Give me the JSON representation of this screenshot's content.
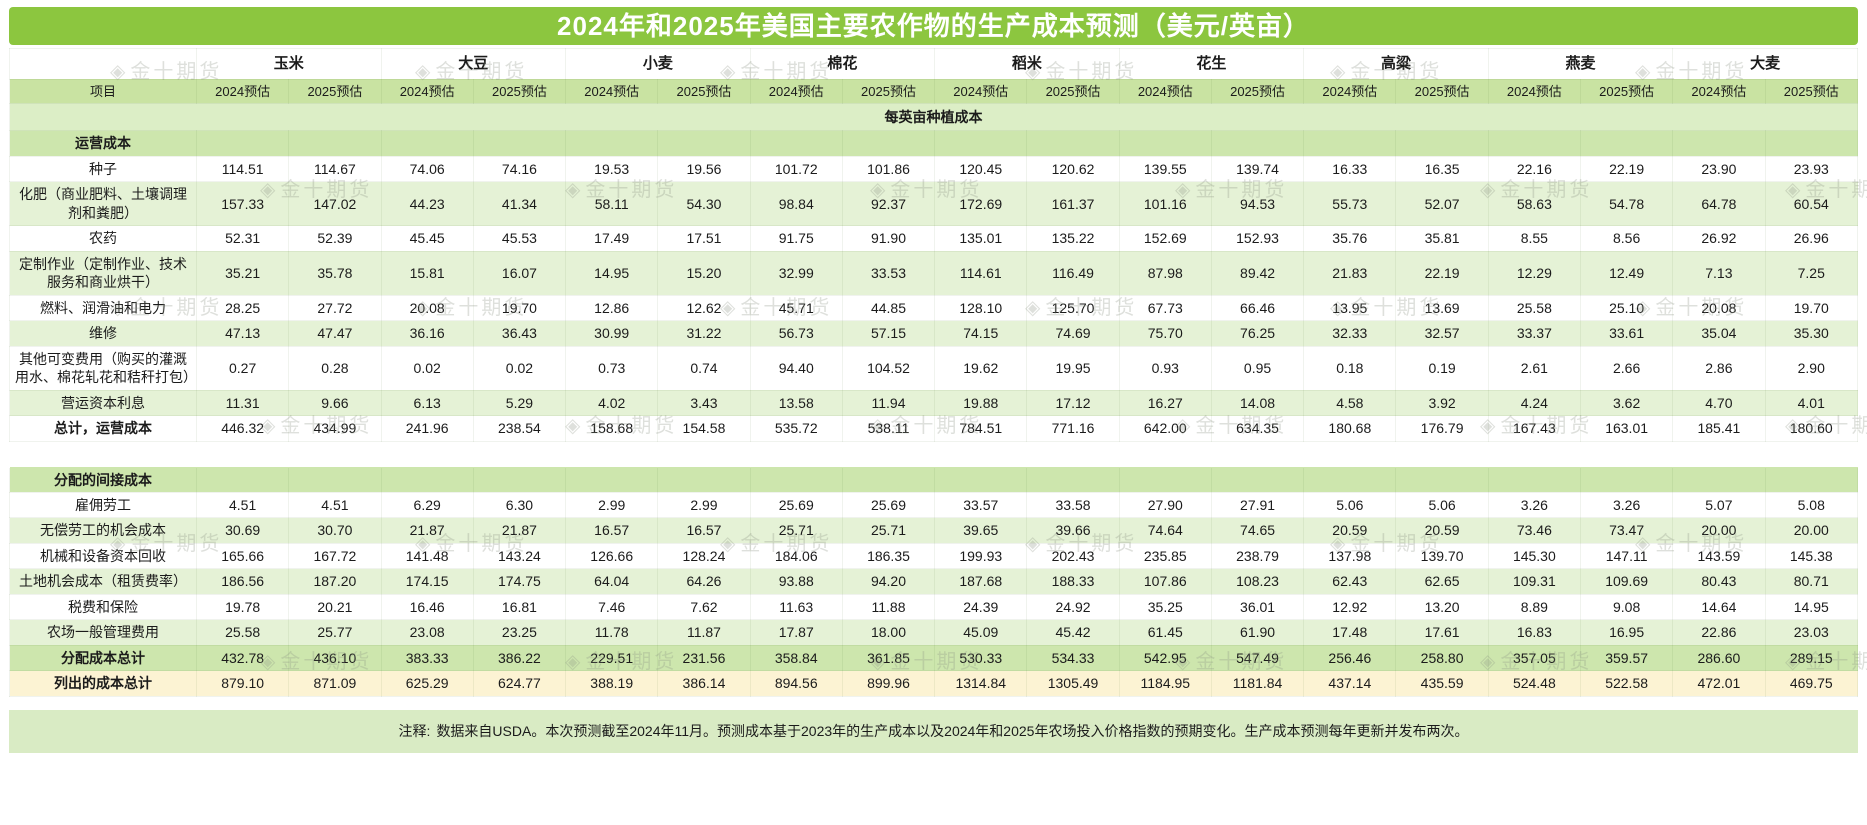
{
  "chart_data": {
    "type": "table",
    "title": "2024年和2025年美国主要农作物的生产成本预测（美元/英亩）",
    "item_column_header": "项目",
    "crop_groups": [
      "玉米",
      "大豆",
      "小麦",
      "棉花",
      "稻米",
      "花生",
      "高粱",
      "燕麦",
      "大麦"
    ],
    "year_subheaders": [
      "2024预估",
      "2025预估"
    ],
    "rows": [
      {
        "type": "banner",
        "label": "每英亩种植成本"
      },
      {
        "type": "section",
        "label": "运营成本"
      },
      {
        "type": "data",
        "shade": "white",
        "bold": false,
        "label": "种子",
        "values": [
          "114.51",
          "114.67",
          "74.06",
          "74.16",
          "19.53",
          "19.56",
          "101.72",
          "101.86",
          "120.45",
          "120.62",
          "139.55",
          "139.74",
          "16.33",
          "16.35",
          "22.16",
          "22.19",
          "23.90",
          "23.93"
        ]
      },
      {
        "type": "data",
        "shade": "green",
        "bold": false,
        "label": "化肥（商业肥料、土壤调理剂和粪肥）",
        "values": [
          "157.33",
          "147.02",
          "44.23",
          "41.34",
          "58.11",
          "54.30",
          "98.84",
          "92.37",
          "172.69",
          "161.37",
          "101.16",
          "94.53",
          "55.73",
          "52.07",
          "58.63",
          "54.78",
          "64.78",
          "60.54"
        ]
      },
      {
        "type": "data",
        "shade": "white",
        "bold": false,
        "label": "农药",
        "values": [
          "52.31",
          "52.39",
          "45.45",
          "45.53",
          "17.49",
          "17.51",
          "91.75",
          "91.90",
          "135.01",
          "135.22",
          "152.69",
          "152.93",
          "35.76",
          "35.81",
          "8.55",
          "8.56",
          "26.92",
          "26.96"
        ]
      },
      {
        "type": "data",
        "shade": "green",
        "bold": false,
        "label": "定制作业（定制作业、技术服务和商业烘干）",
        "values": [
          "35.21",
          "35.78",
          "15.81",
          "16.07",
          "14.95",
          "15.20",
          "32.99",
          "33.53",
          "114.61",
          "116.49",
          "87.98",
          "89.42",
          "21.83",
          "22.19",
          "12.29",
          "12.49",
          "7.13",
          "7.25"
        ]
      },
      {
        "type": "data",
        "shade": "white",
        "bold": false,
        "label": "燃料、润滑油和电力",
        "values": [
          "28.25",
          "27.72",
          "20.08",
          "19.70",
          "12.86",
          "12.62",
          "45.71",
          "44.85",
          "128.10",
          "125.70",
          "67.73",
          "66.46",
          "13.95",
          "13.69",
          "25.58",
          "25.10",
          "20.08",
          "19.70"
        ]
      },
      {
        "type": "data",
        "shade": "green",
        "bold": false,
        "label": "维修",
        "values": [
          "47.13",
          "47.47",
          "36.16",
          "36.43",
          "30.99",
          "31.22",
          "56.73",
          "57.15",
          "74.15",
          "74.69",
          "75.70",
          "76.25",
          "32.33",
          "32.57",
          "33.37",
          "33.61",
          "35.04",
          "35.30"
        ]
      },
      {
        "type": "data",
        "shade": "white",
        "bold": false,
        "label": "其他可变费用（购买的灌溉用水、棉花轧花和秸秆打包）",
        "values": [
          "0.27",
          "0.28",
          "0.02",
          "0.02",
          "0.73",
          "0.74",
          "94.40",
          "104.52",
          "19.62",
          "19.95",
          "0.93",
          "0.95",
          "0.18",
          "0.19",
          "2.61",
          "2.66",
          "2.86",
          "2.90"
        ]
      },
      {
        "type": "data",
        "shade": "green",
        "bold": false,
        "label": "营运资本利息",
        "values": [
          "11.31",
          "9.66",
          "6.13",
          "5.29",
          "4.02",
          "3.43",
          "13.58",
          "11.94",
          "19.88",
          "17.12",
          "16.27",
          "14.08",
          "4.58",
          "3.92",
          "4.24",
          "3.62",
          "4.70",
          "4.01"
        ]
      },
      {
        "type": "data",
        "shade": "white",
        "bold": true,
        "label": "总计，运营成本",
        "values": [
          "446.32",
          "434.99",
          "241.96",
          "238.54",
          "158.68",
          "154.58",
          "535.72",
          "538.11",
          "784.51",
          "771.16",
          "642.00",
          "634.35",
          "180.68",
          "176.79",
          "167.43",
          "163.01",
          "185.41",
          "180.60"
        ]
      },
      {
        "type": "spacer"
      },
      {
        "type": "section",
        "label": "分配的间接成本"
      },
      {
        "type": "data",
        "shade": "white",
        "bold": false,
        "label": "雇佣劳工",
        "values": [
          "4.51",
          "4.51",
          "6.29",
          "6.30",
          "2.99",
          "2.99",
          "25.69",
          "25.69",
          "33.57",
          "33.58",
          "27.90",
          "27.91",
          "5.06",
          "5.06",
          "3.26",
          "3.26",
          "5.07",
          "5.08"
        ]
      },
      {
        "type": "data",
        "shade": "green",
        "bold": false,
        "label": "无偿劳工的机会成本",
        "values": [
          "30.69",
          "30.70",
          "21.87",
          "21.87",
          "16.57",
          "16.57",
          "25.71",
          "25.71",
          "39.65",
          "39.66",
          "74.64",
          "74.65",
          "20.59",
          "20.59",
          "73.46",
          "73.47",
          "20.00",
          "20.00"
        ]
      },
      {
        "type": "data",
        "shade": "white",
        "bold": false,
        "label": "机械和设备资本回收",
        "values": [
          "165.66",
          "167.72",
          "141.48",
          "143.24",
          "126.66",
          "128.24",
          "184.06",
          "186.35",
          "199.93",
          "202.43",
          "235.85",
          "238.79",
          "137.98",
          "139.70",
          "145.30",
          "147.11",
          "143.59",
          "145.38"
        ]
      },
      {
        "type": "data",
        "shade": "green",
        "bold": false,
        "label": "土地机会成本（租赁费率）",
        "values": [
          "186.56",
          "187.20",
          "174.15",
          "174.75",
          "64.04",
          "64.26",
          "93.88",
          "94.20",
          "187.68",
          "188.33",
          "107.86",
          "108.23",
          "62.43",
          "62.65",
          "109.31",
          "109.69",
          "80.43",
          "80.71"
        ]
      },
      {
        "type": "data",
        "shade": "white",
        "bold": false,
        "label": "税费和保险",
        "values": [
          "19.78",
          "20.21",
          "16.46",
          "16.81",
          "7.46",
          "7.62",
          "11.63",
          "11.88",
          "24.39",
          "24.92",
          "35.25",
          "36.01",
          "12.92",
          "13.20",
          "8.89",
          "9.08",
          "14.64",
          "14.95"
        ]
      },
      {
        "type": "data",
        "shade": "green",
        "bold": false,
        "label": "农场一般管理费用",
        "values": [
          "25.58",
          "25.77",
          "23.08",
          "23.25",
          "11.78",
          "11.87",
          "17.87",
          "18.00",
          "45.09",
          "45.42",
          "61.45",
          "61.90",
          "17.48",
          "17.61",
          "16.83",
          "16.95",
          "22.86",
          "23.03"
        ]
      },
      {
        "type": "data",
        "shade": "section",
        "bold": true,
        "label": "分配成本总计",
        "values": [
          "432.78",
          "436.10",
          "383.33",
          "386.22",
          "229.51",
          "231.56",
          "358.84",
          "361.85",
          "530.33",
          "534.33",
          "542.95",
          "547.49",
          "256.46",
          "258.80",
          "357.05",
          "359.57",
          "286.60",
          "289.15"
        ]
      },
      {
        "type": "data",
        "shade": "yellow",
        "bold": true,
        "label": "列出的成本总计",
        "values": [
          "879.10",
          "871.09",
          "625.29",
          "624.77",
          "388.19",
          "386.14",
          "894.56",
          "899.96",
          "1314.84",
          "1305.49",
          "1184.95",
          "1181.84",
          "437.14",
          "435.59",
          "524.48",
          "522.58",
          "472.01",
          "469.75"
        ]
      }
    ],
    "note_label": "注释:",
    "note_text": "数据来自USDA。本次预测截至2024年11月。预测成本基于2023年的生产成本以及2024年和2025年农场投入价格指数的预期变化。生产成本预测每年更新并发布两次。"
  },
  "watermark": {
    "text": "金十期货",
    "icon": "jin10-diamond"
  },
  "colors": {
    "title_green": "#8CC63F",
    "header_green": "#C9E3A2",
    "section_green": "#CDE6AD",
    "row_green": "#E5F2D6",
    "banner_green": "#DCEEC6",
    "total_yellow": "#FCF3D3",
    "note_green": "#D9EBC4"
  }
}
